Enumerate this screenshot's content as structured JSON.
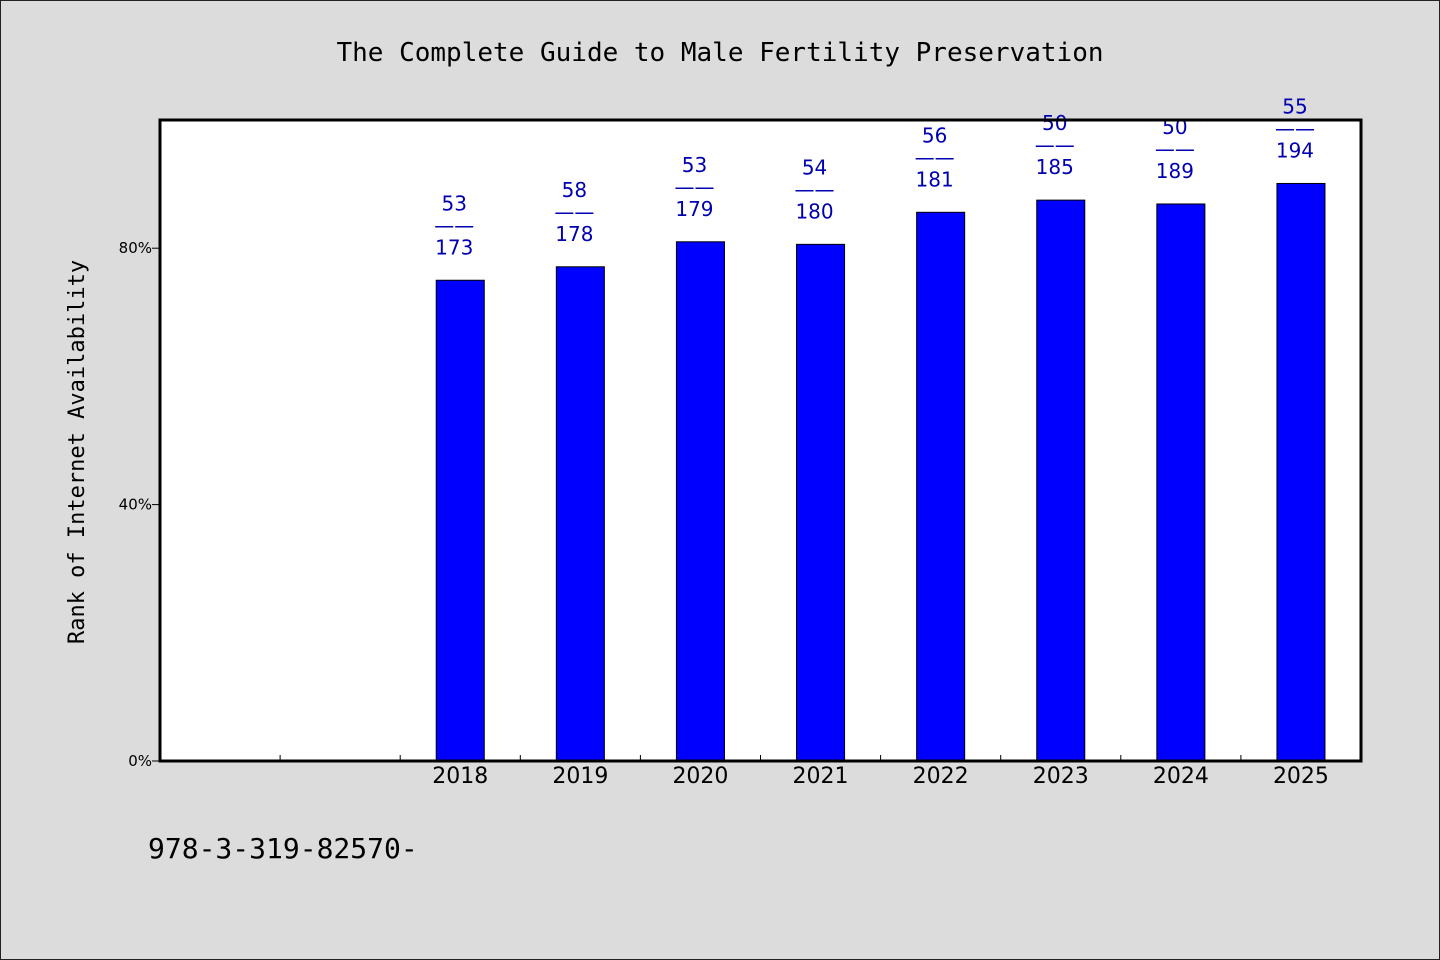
{
  "chart_data": {
    "type": "bar",
    "title": "The Complete Guide to Male Fertility Preservation",
    "ylabel": "Rank of Internet Availability",
    "xlabel": "",
    "ylim": [
      0,
      100
    ],
    "y_ticks": [
      {
        "value": 0,
        "label": "0%"
      },
      {
        "value": 40,
        "label": "40%"
      },
      {
        "value": 80,
        "label": "80%"
      }
    ],
    "categories": [
      "",
      "",
      "2018",
      "2019",
      "2020",
      "2021",
      "2022",
      "2023",
      "2024",
      "2025"
    ],
    "values": [
      null,
      null,
      75,
      77.1,
      81,
      80.6,
      85.6,
      87.5,
      86.9,
      90.1
    ],
    "data_labels": [
      null,
      null,
      [
        "53",
        "——",
        "173"
      ],
      [
        "58",
        "——",
        "178"
      ],
      [
        "53",
        "——",
        "179"
      ],
      [
        "54",
        "——",
        "180"
      ],
      [
        "56",
        "——",
        "181"
      ],
      [
        "50",
        "——",
        "185"
      ],
      [
        "50",
        "——",
        "189"
      ],
      [
        "55",
        "——",
        "194"
      ]
    ],
    "bar_color": "#0000ff",
    "label_color": "#0000b0",
    "grid": false,
    "legend": "none"
  },
  "footer": {
    "isbn": "978-3-319-82570-"
  }
}
